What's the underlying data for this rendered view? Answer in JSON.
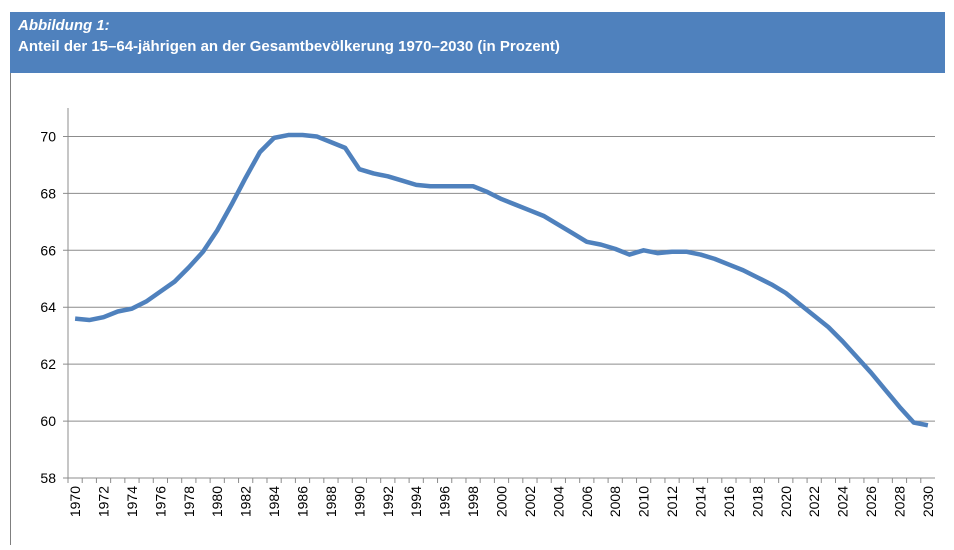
{
  "chart_data": {
    "type": "line",
    "label": "Abbildung 1:",
    "title": "Anteil der 15–64-jährigen an der Gesamtbevölkerung 1970–2030 (in Prozent)",
    "categories": [
      "1970",
      null,
      "1972",
      null,
      "1974",
      null,
      "1976",
      null,
      "1978",
      null,
      "1980",
      null,
      "1982",
      null,
      "1984",
      null,
      "1986",
      null,
      "1988",
      null,
      "1990",
      null,
      "1992",
      null,
      "1994",
      null,
      "1996",
      null,
      "1998",
      null,
      "2000",
      null,
      "2002",
      null,
      "2004",
      null,
      "2006",
      null,
      "2008",
      null,
      "2010",
      null,
      "2012",
      null,
      "2014",
      null,
      "2016",
      null,
      "2018",
      null,
      "2020",
      null,
      "2022",
      null,
      "2024",
      null,
      "2026",
      null,
      "2028",
      null,
      "2030"
    ],
    "values": [
      63.6,
      63.55,
      63.65,
      63.85,
      63.95,
      64.2,
      64.55,
      64.9,
      65.4,
      65.95,
      66.7,
      67.6,
      68.55,
      69.45,
      69.95,
      70.05,
      70.05,
      70.0,
      69.8,
      69.6,
      68.85,
      68.7,
      68.6,
      68.45,
      68.3,
      68.25,
      68.25,
      68.25,
      68.25,
      68.05,
      67.8,
      67.6,
      67.4,
      67.2,
      66.9,
      66.6,
      66.3,
      66.2,
      66.05,
      65.85,
      66.0,
      65.9,
      65.95,
      65.95,
      65.85,
      65.7,
      65.5,
      65.3,
      65.05,
      64.8,
      64.5,
      64.1,
      63.7,
      63.3,
      62.8,
      62.25,
      61.7,
      61.1,
      60.5,
      59.95,
      59.85
    ],
    "color": "#4f81bd",
    "ylim": [
      58,
      71
    ],
    "yticks": [
      58,
      60,
      62,
      64,
      66,
      68,
      70
    ],
    "grid": true
  }
}
